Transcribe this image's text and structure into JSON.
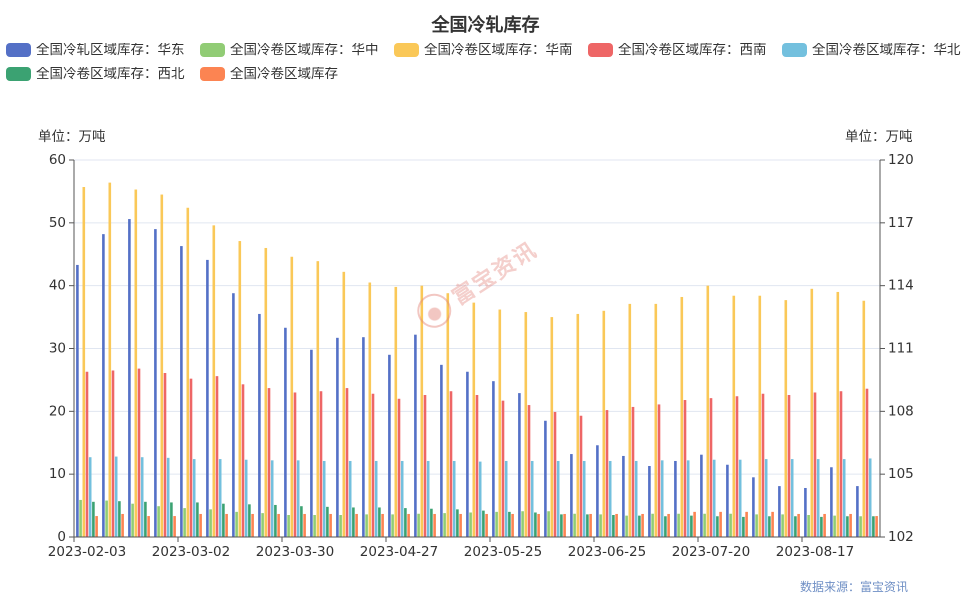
{
  "chart_data": {
    "type": "bar",
    "title": "全国冷轧库存",
    "categories": [
      "2023-02-03",
      "",
      "",
      "",
      "2023-03-02",
      "",
      "",
      "",
      "2023-03-30",
      "",
      "",
      "",
      "2023-04-27",
      "",
      "",
      "",
      "2023-05-25",
      "",
      "",
      "",
      "2023-06-25",
      "",
      "",
      "",
      "2023-07-20",
      "",
      "",
      "",
      "2023-08-17",
      "",
      ""
    ],
    "y_left": {
      "label": "单位：万吨",
      "range": [
        0,
        60
      ],
      "ticks": [
        0,
        10,
        20,
        30,
        40,
        50,
        60
      ]
    },
    "y_right": {
      "label": "单位：万吨",
      "range": [
        102,
        120
      ],
      "ticks": [
        102,
        105,
        108,
        111,
        114,
        117,
        120
      ]
    },
    "grid": true,
    "legend_position": "top",
    "series": [
      {
        "name": "全国冷轧区域库存：华东",
        "color": "#5470c6",
        "axis": "left",
        "values": [
          43.3,
          48.2,
          50.6,
          49.0,
          46.3,
          44.1,
          38.8,
          35.5,
          33.3,
          29.8,
          31.7,
          31.8,
          29.0,
          32.2,
          27.4,
          26.3,
          24.8,
          22.9,
          18.5,
          13.2,
          14.6,
          12.9,
          11.3,
          12.1,
          13.1,
          11.5,
          9.5,
          8.1,
          7.8,
          11.1,
          8.1
        ]
      },
      {
        "name": "全国冷卷区域库存：华中",
        "color": "#91cc75",
        "axis": "left",
        "values": [
          5.9,
          5.8,
          5.3,
          4.9,
          4.6,
          4.4,
          4.0,
          3.8,
          3.5,
          3.5,
          3.5,
          3.6,
          3.6,
          3.7,
          3.8,
          3.9,
          4.0,
          4.1,
          4.1,
          3.7,
          3.6,
          3.4,
          3.7,
          3.7,
          3.7,
          3.7,
          3.6,
          3.6,
          3.5,
          3.4,
          3.3
        ]
      },
      {
        "name": "全国冷卷区域库存：华南",
        "color": "#fac858",
        "axis": "left",
        "values": [
          55.7,
          56.4,
          55.3,
          54.5,
          52.4,
          49.6,
          47.1,
          46.0,
          44.6,
          43.9,
          42.2,
          40.5,
          39.8,
          40.0,
          38.8,
          37.3,
          36.2,
          35.8,
          35.0,
          35.5,
          36.0,
          37.1,
          37.1,
          38.2,
          40.0,
          38.4,
          38.4,
          37.7,
          39.5,
          39.0,
          37.6
        ]
      },
      {
        "name": "全国冷卷区域库存：西南",
        "color": "#ee6666",
        "axis": "left",
        "values": [
          26.3,
          26.5,
          26.8,
          26.1,
          25.2,
          25.6,
          24.3,
          23.7,
          23.0,
          23.2,
          23.7,
          22.8,
          22.0,
          22.6,
          23.2,
          22.6,
          21.7,
          21.0,
          19.9,
          19.3,
          20.2,
          20.7,
          21.1,
          21.8,
          22.1,
          22.4,
          22.8,
          22.6,
          23.0,
          23.2,
          23.6
        ]
      },
      {
        "name": "全国冷卷区域库存：华北",
        "color": "#73c0de",
        "axis": "left",
        "values": [
          12.7,
          12.8,
          12.7,
          12.6,
          12.4,
          12.4,
          12.3,
          12.2,
          12.2,
          12.1,
          12.1,
          12.1,
          12.1,
          12.1,
          12.1,
          12.0,
          12.1,
          12.1,
          12.1,
          12.1,
          12.1,
          12.1,
          12.2,
          12.2,
          12.3,
          12.3,
          12.4,
          12.4,
          12.4,
          12.4,
          12.5
        ]
      },
      {
        "name": "全国冷卷区域库存：西北",
        "color": "#3ba272",
        "axis": "left",
        "values": [
          5.6,
          5.7,
          5.6,
          5.5,
          5.5,
          5.3,
          5.2,
          5.1,
          4.9,
          4.8,
          4.7,
          4.7,
          4.6,
          4.5,
          4.4,
          4.2,
          4.0,
          3.9,
          3.6,
          3.6,
          3.5,
          3.4,
          3.3,
          3.4,
          3.3,
          3.2,
          3.3,
          3.3,
          3.2,
          3.3,
          3.3
        ]
      },
      {
        "name": "全国冷卷区域库存",
        "color": "#fc8452",
        "axis": "right",
        "values": [
          103.0,
          103.1,
          103.0,
          103.0,
          103.1,
          103.1,
          103.1,
          103.1,
          103.1,
          103.1,
          103.1,
          103.1,
          103.1,
          103.1,
          103.1,
          103.1,
          103.1,
          103.1,
          103.1,
          103.1,
          103.1,
          103.1,
          103.1,
          103.2,
          103.2,
          103.2,
          103.2,
          103.1,
          103.1,
          103.1,
          103.0
        ]
      }
    ]
  },
  "watermark": {
    "text": "富宝资讯"
  },
  "source": {
    "text": "数据来源：富宝资讯"
  }
}
